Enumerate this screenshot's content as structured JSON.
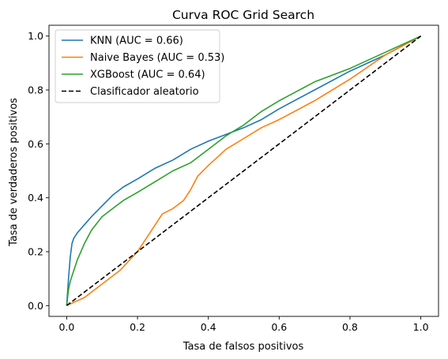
{
  "chart_data": {
    "type": "line",
    "title": "Curva ROC Grid Search",
    "xlabel": "Tasa de falsos positivos",
    "ylabel": "Tasa de verdaderos positivos",
    "xlim": [
      -0.05,
      1.05
    ],
    "ylim": [
      -0.04,
      1.04
    ],
    "xticks": [
      0.0,
      0.2,
      0.4,
      0.6,
      0.8,
      1.0
    ],
    "yticks": [
      0.0,
      0.2,
      0.4,
      0.6,
      0.8,
      1.0
    ],
    "xtick_labels": [
      "0.0",
      "0.2",
      "0.4",
      "0.6",
      "0.8",
      "1.0"
    ],
    "ytick_labels": [
      "0.0",
      "0.2",
      "0.4",
      "0.6",
      "0.8",
      "1.0"
    ],
    "grid": false,
    "legend_position": "top-left",
    "series": [
      {
        "name": "KNN (AUC = 0.66)",
        "color": "#1f77b4",
        "style": "solid",
        "x": [
          0.0,
          0.005,
          0.01,
          0.015,
          0.02,
          0.03,
          0.05,
          0.07,
          0.1,
          0.13,
          0.16,
          0.2,
          0.25,
          0.3,
          0.35,
          0.4,
          0.45,
          0.5,
          0.55,
          0.6,
          0.7,
          0.8,
          0.9,
          1.0
        ],
        "y": [
          0.0,
          0.1,
          0.18,
          0.23,
          0.25,
          0.27,
          0.3,
          0.33,
          0.37,
          0.41,
          0.44,
          0.47,
          0.51,
          0.54,
          0.58,
          0.61,
          0.635,
          0.66,
          0.69,
          0.73,
          0.8,
          0.87,
          0.93,
          1.0
        ]
      },
      {
        "name": "Naive Bayes (AUC = 0.53)",
        "color": "#ff7f0e",
        "style": "solid",
        "x": [
          0.0,
          0.05,
          0.1,
          0.15,
          0.2,
          0.22,
          0.25,
          0.27,
          0.3,
          0.33,
          0.35,
          0.37,
          0.4,
          0.45,
          0.5,
          0.55,
          0.6,
          0.7,
          0.8,
          0.9,
          1.0
        ],
        "y": [
          0.0,
          0.03,
          0.08,
          0.13,
          0.2,
          0.24,
          0.3,
          0.34,
          0.36,
          0.39,
          0.43,
          0.48,
          0.52,
          0.58,
          0.62,
          0.66,
          0.69,
          0.76,
          0.84,
          0.93,
          1.0
        ]
      },
      {
        "name": "XGBoost (AUC = 0.64)",
        "color": "#2ca02c",
        "style": "solid",
        "x": [
          0.0,
          0.005,
          0.01,
          0.02,
          0.03,
          0.05,
          0.07,
          0.1,
          0.13,
          0.16,
          0.2,
          0.25,
          0.3,
          0.35,
          0.4,
          0.45,
          0.5,
          0.55,
          0.6,
          0.7,
          0.8,
          0.9,
          1.0
        ],
        "y": [
          0.0,
          0.06,
          0.09,
          0.13,
          0.17,
          0.23,
          0.28,
          0.33,
          0.36,
          0.39,
          0.42,
          0.46,
          0.5,
          0.53,
          0.58,
          0.63,
          0.67,
          0.72,
          0.76,
          0.83,
          0.88,
          0.94,
          1.0
        ]
      },
      {
        "name": "Clasificador aleatorio",
        "color": "#000000",
        "style": "dashed",
        "x": [
          0.0,
          1.0
        ],
        "y": [
          0.0,
          1.0
        ]
      }
    ]
  }
}
